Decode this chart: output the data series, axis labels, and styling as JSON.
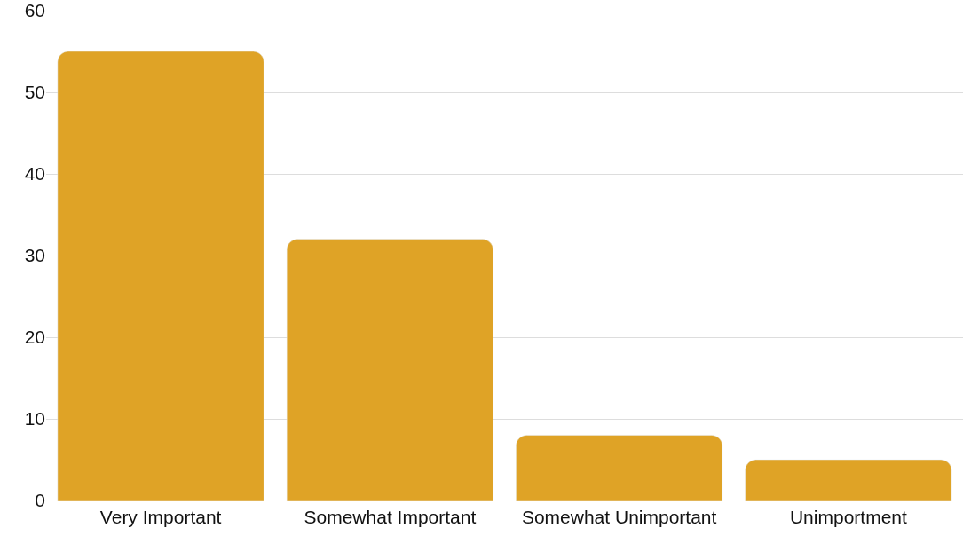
{
  "chart_data": {
    "type": "bar",
    "categories": [
      "Very Important",
      "Somewhat Important",
      "Somewhat Unimportant",
      "Unimportment"
    ],
    "values": [
      55,
      32,
      8,
      5
    ],
    "color": "#dfa326",
    "ylim": [
      0,
      60
    ],
    "yticks": [
      0,
      10,
      20,
      30,
      40,
      50,
      60
    ],
    "grid": "y"
  }
}
